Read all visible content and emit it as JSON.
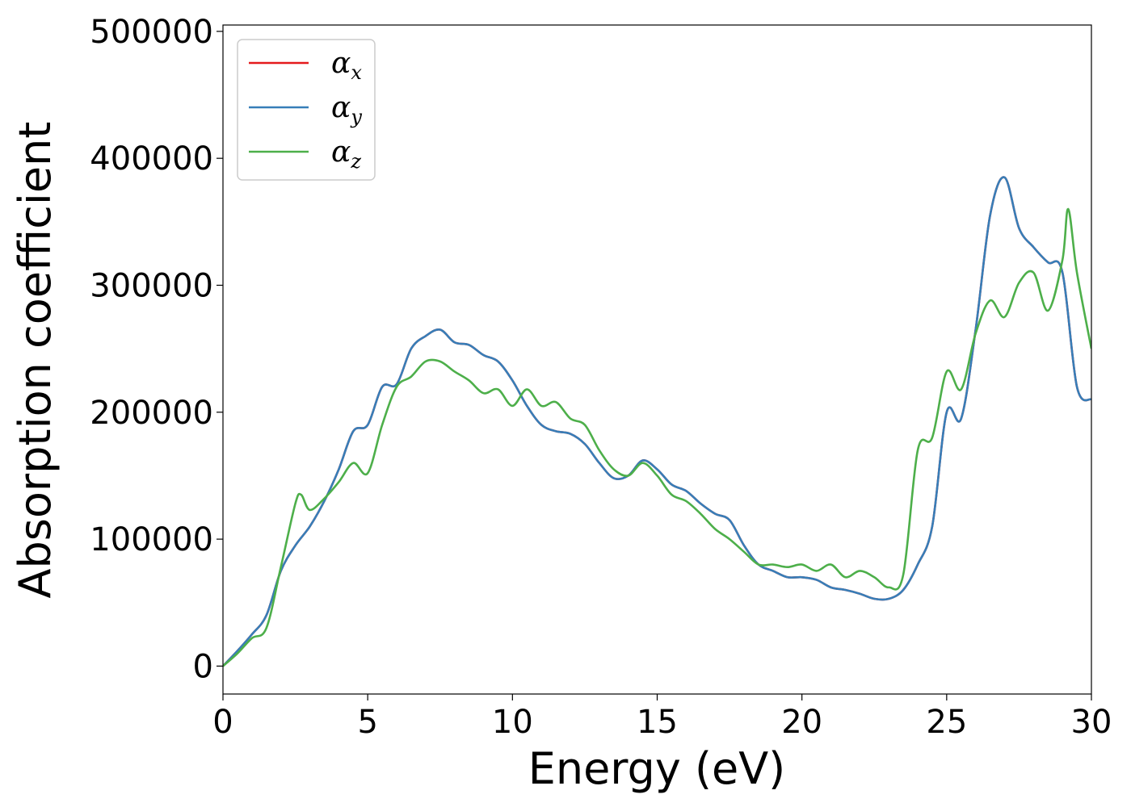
{
  "chart_data": {
    "type": "line",
    "xlabel": "Energy (eV)",
    "ylabel": "Absorption coefficient",
    "xlim": [
      0,
      30
    ],
    "ylim": [
      -22000,
      505000
    ],
    "x_ticks": [
      0,
      5,
      10,
      15,
      20,
      25,
      30
    ],
    "y_ticks": [
      0,
      100000,
      200000,
      300000,
      400000,
      500000
    ],
    "grid": false,
    "legend_position": "top-left",
    "series": [
      {
        "name": "α",
        "name_sub": "x",
        "color": "#e41a1c",
        "x": [
          0,
          0.5,
          1,
          1.5,
          2,
          2.5,
          3,
          3.5,
          4,
          4.5,
          5,
          5.5,
          6,
          6.5,
          7,
          7.5,
          8,
          8.5,
          9,
          9.5,
          10,
          10.5,
          11,
          11.5,
          12,
          12.5,
          13,
          13.5,
          14,
          14.5,
          15,
          15.5,
          16,
          16.5,
          17,
          17.5,
          18,
          18.5,
          19,
          19.5,
          20,
          20.5,
          21,
          21.5,
          22,
          22.5,
          23,
          23.5,
          24,
          24.5,
          25,
          25.5,
          26,
          26.5,
          27,
          27.5,
          28,
          28.5,
          29,
          29.5,
          30
        ],
        "y": [
          0,
          12000,
          25000,
          40000,
          75000,
          95000,
          110000,
          130000,
          155000,
          185000,
          190000,
          220000,
          222000,
          250000,
          260000,
          265000,
          255000,
          253000,
          245000,
          240000,
          225000,
          205000,
          190000,
          185000,
          183000,
          175000,
          160000,
          148000,
          150000,
          162000,
          155000,
          143000,
          138000,
          128000,
          120000,
          115000,
          95000,
          80000,
          75000,
          70000,
          70000,
          68000,
          62000,
          60000,
          57000,
          53000,
          53000,
          60000,
          80000,
          110000,
          200000,
          195000,
          265000,
          355000,
          385000,
          345000,
          330000,
          318000,
          310000,
          220000,
          210000
        ]
      },
      {
        "name": "α",
        "name_sub": "y",
        "color": "#377eb8",
        "x": [
          0,
          0.5,
          1,
          1.5,
          2,
          2.5,
          3,
          3.5,
          4,
          4.5,
          5,
          5.5,
          6,
          6.5,
          7,
          7.5,
          8,
          8.5,
          9,
          9.5,
          10,
          10.5,
          11,
          11.5,
          12,
          12.5,
          13,
          13.5,
          14,
          14.5,
          15,
          15.5,
          16,
          16.5,
          17,
          17.5,
          18,
          18.5,
          19,
          19.5,
          20,
          20.5,
          21,
          21.5,
          22,
          22.5,
          23,
          23.5,
          24,
          24.5,
          25,
          25.5,
          26,
          26.5,
          27,
          27.5,
          28,
          28.5,
          29,
          29.5,
          30
        ],
        "y": [
          0,
          12000,
          25000,
          40000,
          75000,
          95000,
          110000,
          130000,
          155000,
          185000,
          190000,
          220000,
          222000,
          250000,
          260000,
          265000,
          255000,
          253000,
          245000,
          240000,
          225000,
          205000,
          190000,
          185000,
          183000,
          175000,
          160000,
          148000,
          150000,
          162000,
          155000,
          143000,
          138000,
          128000,
          120000,
          115000,
          95000,
          80000,
          75000,
          70000,
          70000,
          68000,
          62000,
          60000,
          57000,
          53000,
          53000,
          60000,
          80000,
          110000,
          200000,
          195000,
          265000,
          355000,
          385000,
          345000,
          330000,
          318000,
          310000,
          220000,
          210000
        ]
      },
      {
        "name": "α",
        "name_sub": "z",
        "color": "#4daf4a",
        "x": [
          0,
          0.5,
          1,
          1.5,
          2,
          2.5,
          2.7,
          3,
          3.5,
          4,
          4.5,
          5,
          5.5,
          6,
          6.5,
          7,
          7.5,
          8,
          8.5,
          9,
          9.5,
          10,
          10.5,
          11,
          11.5,
          12,
          12.5,
          13,
          13.5,
          14,
          14.5,
          15,
          15.5,
          16,
          16.5,
          17,
          17.5,
          18,
          18.5,
          19,
          19.5,
          20,
          20.5,
          21,
          21.5,
          22,
          22.5,
          23,
          23.5,
          24,
          24.5,
          25,
          25.5,
          26,
          26.5,
          27,
          27.5,
          28,
          28.5,
          29,
          29.2,
          29.5,
          30
        ],
        "y": [
          0,
          10000,
          22000,
          30000,
          78000,
          128000,
          135000,
          123000,
          132000,
          145000,
          160000,
          152000,
          190000,
          220000,
          228000,
          240000,
          240000,
          232000,
          225000,
          215000,
          218000,
          205000,
          218000,
          205000,
          208000,
          195000,
          190000,
          170000,
          155000,
          150000,
          160000,
          150000,
          135000,
          130000,
          120000,
          108000,
          100000,
          90000,
          80000,
          80000,
          78000,
          80000,
          75000,
          80000,
          70000,
          75000,
          70000,
          62000,
          72000,
          170000,
          180000,
          232000,
          218000,
          262000,
          288000,
          275000,
          302000,
          310000,
          280000,
          320000,
          360000,
          310000,
          250000
        ]
      }
    ]
  }
}
